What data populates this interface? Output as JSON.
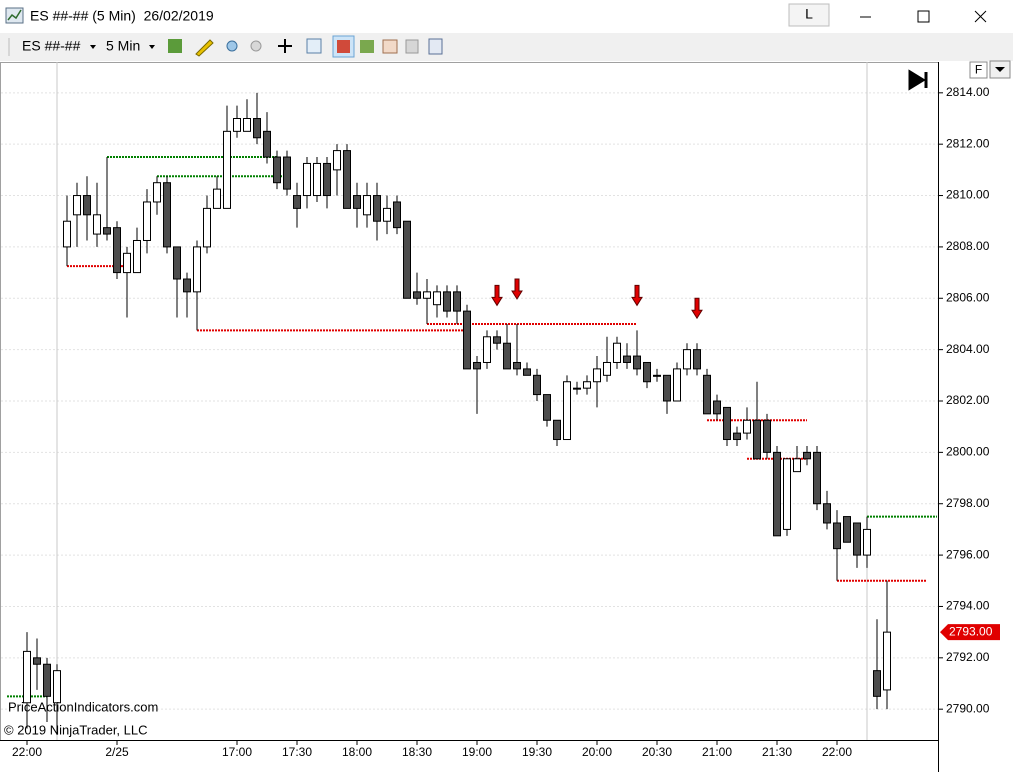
{
  "window": {
    "title": "ES ##-## (5 Min)  26/02/2019",
    "button": "L",
    "scale_label": "F"
  },
  "toolbar": {
    "instrument": "ES ##-##",
    "interval": "5 Min"
  },
  "watermarks": [
    "PriceActionIndicators.com",
    "© 2019 NinjaTrader, LLC"
  ],
  "chart_data": {
    "type": "candlestick",
    "up_color": "#ffffff",
    "down_color": "#4d4d4d",
    "outline_color": "#000000",
    "grid": true,
    "ylim": [
      2788.8,
      2815.2
    ],
    "yticks": [
      {
        "value": 2790,
        "label": "2790.00"
      },
      {
        "value": 2792,
        "label": "2792.00"
      },
      {
        "value": 2794,
        "label": "2794.00"
      },
      {
        "value": 2796,
        "label": "2796.00"
      },
      {
        "value": 2798,
        "label": "2798.00"
      },
      {
        "value": 2800,
        "label": "2800.00"
      },
      {
        "value": 2802,
        "label": "2802.00"
      },
      {
        "value": 2804,
        "label": "2804.00"
      },
      {
        "value": 2806,
        "label": "2806.00"
      },
      {
        "value": 2808,
        "label": "2808.00"
      },
      {
        "value": 2810,
        "label": "2810.00"
      },
      {
        "value": 2812,
        "label": "2812.00"
      },
      {
        "value": 2814,
        "label": "2814.00"
      }
    ],
    "last_price": {
      "value": 2793,
      "label": "2793.00",
      "color": "#e00000"
    },
    "categories": [
      "22:00",
      null,
      null,
      null,
      null,
      null,
      null,
      null,
      null,
      "2/25",
      null,
      null,
      null,
      null,
      null,
      null,
      null,
      null,
      null,
      null,
      null,
      "17:00",
      null,
      null,
      null,
      null,
      null,
      "17:30",
      null,
      null,
      null,
      null,
      null,
      "18:00",
      null,
      null,
      null,
      null,
      null,
      "18:30",
      null,
      null,
      null,
      null,
      null,
      "19:00",
      null,
      null,
      null,
      null,
      null,
      "19:30",
      null,
      null,
      null,
      null,
      null,
      "20:00",
      null,
      null,
      null,
      null,
      null,
      "20:30",
      null,
      null,
      null,
      null,
      null,
      "21:00",
      null,
      null,
      null,
      null,
      null,
      "21:30",
      null,
      null,
      null,
      null,
      null,
      "22:00",
      null,
      null,
      null,
      null,
      null
    ],
    "open": [
      2790.25,
      2792,
      2791.75,
      2790.25,
      2808,
      2809.25,
      2810,
      2808.5,
      2808.75,
      2808.75,
      2807,
      2807,
      2808.25,
      2809.75,
      2810.5,
      2808,
      2806.75,
      2806.25,
      2808,
      2809.5,
      2809.5,
      2812.5,
      2812.5,
      2813,
      2812.5,
      2811.5,
      2811.5,
      2810,
      2810,
      2810,
      2811.25,
      2811,
      2811.75,
      2810,
      2809.25,
      2810,
      2809,
      2809.75,
      2809,
      2806.25,
      2806,
      2805.75,
      2806.25,
      2806.25,
      2805.5,
      2803.5,
      2803.5,
      2804.5,
      2804.25,
      2803.5,
      2803.25,
      2803,
      2802.25,
      2801.25,
      2800.5,
      2802.5,
      2802.5,
      2802.75,
      2803,
      2803.5,
      2803.75,
      2803.75,
      2803.5,
      2803,
      2803,
      2802,
      2803.25,
      2804,
      2803,
      2802,
      2801.75,
      2800.75,
      2800.75,
      2801.25,
      2801.25,
      2800,
      2797,
      2799.25,
      2800,
      2800,
      2798,
      2797.25,
      2797.5,
      2797.25,
      2796,
      2791.5,
      2790.75
    ],
    "high": [
      2793,
      2792.75,
      2792,
      2791.75,
      2810,
      2810.5,
      2810.75,
      2810.5,
      2811.5,
      2809,
      2808,
      2808.75,
      2810.25,
      2810.75,
      2810.75,
      2808,
      2807,
      2808.25,
      2810,
      2810.75,
      2813.5,
      2813.5,
      2813.75,
      2814,
      2813.25,
      2811.75,
      2811.75,
      2810.5,
      2811.5,
      2811.5,
      2811.5,
      2812,
      2812,
      2810.5,
      2810.5,
      2810.5,
      2810,
      2810,
      2809,
      2807,
      2806.75,
      2806.5,
      2806.5,
      2806.5,
      2805.75,
      2803.75,
      2804.75,
      2804.75,
      2805,
      2805,
      2803.5,
      2803.25,
      2802.25,
      2801.25,
      2803,
      2802.75,
      2803,
      2803.75,
      2804.5,
      2804.5,
      2804.25,
      2804.75,
      2803.5,
      2803.25,
      2803,
      2803.5,
      2804.25,
      2804.25,
      2803.25,
      2802.25,
      2801.75,
      2801,
      2801.75,
      2802.75,
      2801.5,
      2800.25,
      2799.75,
      2800.25,
      2800.25,
      2800.25,
      2798.5,
      2797.75,
      2797.5,
      2797.25,
      2797.5,
      2793.5,
      2795
    ],
    "low": [
      2789.25,
      2790.75,
      2789.5,
      2789,
      2807.25,
      2808,
      2808.25,
      2808,
      2808.25,
      2806.75,
      2805.25,
      2807,
      2807.75,
      2809.25,
      2807.75,
      2805.25,
      2805.25,
      2804.75,
      2807.75,
      2809.5,
      2809.5,
      2812.25,
      2812.5,
      2812,
      2811.25,
      2810.25,
      2810,
      2808.75,
      2809.5,
      2809.75,
      2809.5,
      2810,
      2809.5,
      2808.75,
      2808.75,
      2808.25,
      2808.5,
      2808.5,
      2806,
      2805.75,
      2805,
      2805.25,
      2805.25,
      2805,
      2803.25,
      2801.5,
      2803.25,
      2804,
      2803.25,
      2803,
      2803,
      2802,
      2801,
      2800.25,
      2800.5,
      2802.25,
      2802.25,
      2801.75,
      2802.75,
      2803.25,
      2803.25,
      2803,
      2802.5,
      2802.75,
      2801.5,
      2802,
      2803,
      2803,
      2801.5,
      2801.25,
      2800.25,
      2800.25,
      2800.5,
      2799.75,
      2799.75,
      2796.75,
      2796.75,
      2799.25,
      2799.5,
      2797.75,
      2797,
      2795,
      2796.5,
      2795.5,
      2795.5,
      2790,
      2790
    ],
    "close": [
      2792.25,
      2791.75,
      2790.5,
      2791.5,
      2809,
      2810,
      2809.25,
      2809.25,
      2808.5,
      2807,
      2807.75,
      2808.25,
      2809.75,
      2810.5,
      2808,
      2806.75,
      2806.25,
      2808,
      2809.5,
      2810.25,
      2812.5,
      2813,
      2813,
      2812.25,
      2811.5,
      2810.5,
      2810.25,
      2809.5,
      2811.25,
      2811.25,
      2810,
      2811.75,
      2809.5,
      2809.5,
      2810,
      2809,
      2809.5,
      2808.75,
      2806,
      2806,
      2806.25,
      2806.25,
      2805.5,
      2805.5,
      2803.25,
      2803.25,
      2804.5,
      2804.25,
      2803.25,
      2803.25,
      2803,
      2802.25,
      2801.25,
      2800.5,
      2802.75,
      2802.5,
      2802.75,
      2803.25,
      2803.5,
      2804.25,
      2803.5,
      2803.25,
      2802.75,
      2803,
      2802,
      2803.25,
      2804,
      2803.25,
      2801.5,
      2801.5,
      2800.5,
      2800.5,
      2801.25,
      2799.75,
      2800,
      2796.75,
      2799.75,
      2799.75,
      2799.75,
      2798,
      2797.25,
      2796.25,
      2796.5,
      2796,
      2797,
      2790.5,
      2793
    ],
    "session_breaks": [
      3,
      84
    ],
    "levels": [
      {
        "value": 2790.5,
        "color": "#008000",
        "from": -2,
        "to": 2
      },
      {
        "value": 2807.25,
        "color": "#e00000",
        "from": 4,
        "to": 10
      },
      {
        "value": 2811.5,
        "color": "#008000",
        "from": 8,
        "to": 25
      },
      {
        "value": 2810.75,
        "color": "#008000",
        "from": 13,
        "to": 26
      },
      {
        "value": 2804.75,
        "color": "#e00000",
        "from": 17,
        "to": 44
      },
      {
        "value": 2805,
        "color": "#e00000",
        "from": 40,
        "to": 61
      },
      {
        "value": 2801.25,
        "color": "#e00000",
        "from": 68,
        "to": 78
      },
      {
        "value": 2799.75,
        "color": "#e00000",
        "from": 72,
        "to": 78
      },
      {
        "value": 2797.5,
        "color": "#008000",
        "from": 84,
        "to": 91
      },
      {
        "value": 2795,
        "color": "#e00000",
        "from": 81,
        "to": 90
      }
    ],
    "arrows": [
      47,
      49,
      61,
      67
    ],
    "arrow_color": "#e00000"
  }
}
